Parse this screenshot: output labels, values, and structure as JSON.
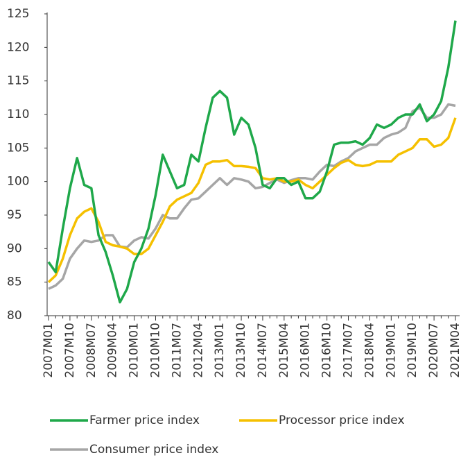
{
  "chart_data": {
    "type": "line",
    "categories": [
      "2007M01",
      null,
      null,
      "2007M10",
      null,
      null,
      "2008M07",
      null,
      null,
      "2009M04",
      null,
      null,
      "2010M01",
      null,
      null,
      "2010M10",
      null,
      null,
      "2011M07",
      null,
      null,
      "2012M04",
      null,
      null,
      "2013M01",
      null,
      null,
      "2013M10",
      null,
      null,
      "2014M07",
      null,
      null,
      "2015M04",
      null,
      null,
      "2016M01",
      null,
      null,
      "2016M10",
      null,
      null,
      "2017M07",
      null,
      null,
      "2018M04",
      null,
      null,
      "2019M01",
      null,
      null,
      "2019M10",
      null,
      null,
      "2020M07",
      null,
      null,
      "2021M04"
    ],
    "series": [
      {
        "name": "Farmer price index",
        "color": "#1fa84a",
        "values": [
          88,
          86.5,
          93,
          99,
          103.5,
          99.5,
          99,
          92,
          89.5,
          86,
          82,
          84,
          88,
          90,
          93,
          98,
          104,
          101.5,
          99,
          99.5,
          104,
          103,
          108,
          112.5,
          113.5,
          112.5,
          107,
          109.5,
          108.5,
          105,
          99.5,
          99,
          100.5,
          100.5,
          99.5,
          100,
          97.5,
          97.5,
          98.5,
          101.5,
          105.5,
          105.8,
          105.8,
          106,
          105.5,
          106.5,
          108.5,
          108,
          108.5,
          109.5,
          110,
          110,
          111.5,
          109,
          110,
          112,
          117,
          124
        ]
      },
      {
        "name": "Processor price index",
        "color": "#f5c000",
        "values": [
          85,
          86,
          88.5,
          92,
          94.5,
          95.5,
          96,
          94,
          91,
          90.5,
          90.3,
          90,
          89.2,
          89.2,
          90,
          92,
          94,
          96.3,
          97.3,
          97.8,
          98.3,
          99.8,
          102.5,
          103,
          103,
          103.2,
          102.3,
          102.3,
          102.2,
          102,
          100.5,
          100.3,
          100.5,
          100,
          100,
          100.3,
          99.5,
          99,
          100,
          101,
          102,
          102.8,
          103.2,
          102.5,
          102.3,
          102.5,
          103,
          103,
          103,
          104,
          104.5,
          105,
          106.3,
          106.3,
          105.2,
          105.5,
          106.5,
          109.5
        ]
      },
      {
        "name": "Consumer price index",
        "color": "#a6a6a6",
        "values": [
          84,
          84.5,
          85.5,
          88.5,
          90,
          91.2,
          91,
          91.2,
          92,
          92,
          90.3,
          90.2,
          91.2,
          91.7,
          91.5,
          93,
          95,
          94.5,
          94.5,
          96,
          97.3,
          97.5,
          98.5,
          99.5,
          100.5,
          99.5,
          100.5,
          100.3,
          100,
          99,
          99.2,
          99.8,
          100.3,
          99.8,
          100.2,
          100.5,
          100.5,
          100.3,
          101.5,
          102.5,
          102.3,
          103,
          103.5,
          104.5,
          105,
          105.5,
          105.5,
          106.5,
          107,
          107.3,
          108,
          110.5,
          111,
          109.5,
          109.5,
          110,
          111.5,
          111.3
        ]
      }
    ],
    "ylim": [
      80,
      125
    ],
    "yticks": [
      80,
      85,
      90,
      95,
      100,
      105,
      110,
      115,
      120,
      125
    ],
    "grid": false
  }
}
